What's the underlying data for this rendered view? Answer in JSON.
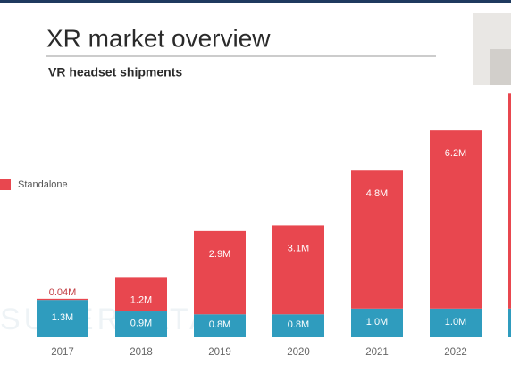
{
  "chart_data": {
    "type": "stacked-bar",
    "title": "XR market overview",
    "subtitle": "VR headset shipments",
    "watermark": "SUPERDATA",
    "categories": [
      "2017",
      "2018",
      "2019",
      "2020",
      "2021",
      "2022",
      null
    ],
    "series": [
      {
        "name": null,
        "color": "#2f9cbe",
        "values": [
          1.3,
          0.9,
          0.8,
          0.8,
          1.0,
          1.0,
          1.0
        ],
        "value_labels": [
          "1.3M",
          "0.9M",
          "0.8M",
          "0.8M",
          "1.0M",
          "1.0M",
          null
        ]
      },
      {
        "name": "Standalone",
        "color": "#e8474f",
        "values": [
          0.04,
          1.2,
          2.9,
          3.1,
          4.8,
          6.2,
          7.5
        ],
        "value_labels": [
          "0.04M",
          "1.2M",
          "2.9M",
          "3.1M",
          "4.8M",
          "6.2M",
          null
        ]
      }
    ],
    "legend": "left"
  }
}
